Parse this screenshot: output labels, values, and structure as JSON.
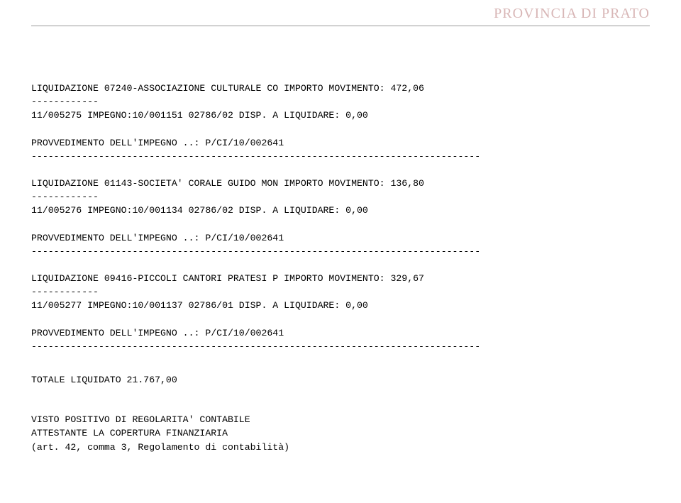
{
  "header": {
    "title": "PROVINCIA DI PRATO",
    "title_color": "#d8b6b6",
    "title_fontsize": 20,
    "rule_color": "#999999"
  },
  "body": {
    "font_family": "Courier New",
    "font_size": 13.2,
    "line_height": 1.45,
    "text_color": "#000000",
    "dash12": "------------",
    "dash80": "--------------------------------------------------------------------------------"
  },
  "entries": [
    {
      "line1": "LIQUIDAZIONE 07240-ASSOCIAZIONE CULTURALE CO IMPORTO MOVIMENTO: 472,06",
      "impegno": "11/005275 IMPEGNO:10/001151 02786/02 DISP. A LIQUIDARE: 0,00",
      "provv": "PROVVEDIMENTO DELL'IMPEGNO ..: P/CI/10/002641"
    },
    {
      "line1": "LIQUIDAZIONE 01143-SOCIETA' CORALE GUIDO MON IMPORTO MOVIMENTO: 136,80",
      "impegno": "11/005276 IMPEGNO:10/001134 02786/02 DISP. A LIQUIDARE: 0,00",
      "provv": "PROVVEDIMENTO DELL'IMPEGNO ..: P/CI/10/002641"
    },
    {
      "line1": "LIQUIDAZIONE 09416-PICCOLI CANTORI PRATESI P IMPORTO MOVIMENTO: 329,67",
      "impegno": "11/005277 IMPEGNO:10/001137 02786/01 DISP. A LIQUIDARE: 0,00",
      "provv": "PROVVEDIMENTO DELL'IMPEGNO ..: P/CI/10/002641"
    }
  ],
  "total_line": "TOTALE LIQUIDATO 21.767,00",
  "footer": {
    "l1": "VISTO POSITIVO DI REGOLARITA' CONTABILE",
    "l2": "ATTESTANTE LA COPERTURA FINANZIARIA",
    "l3": "(art. 42, comma 3, Regolamento di contabilità)"
  }
}
